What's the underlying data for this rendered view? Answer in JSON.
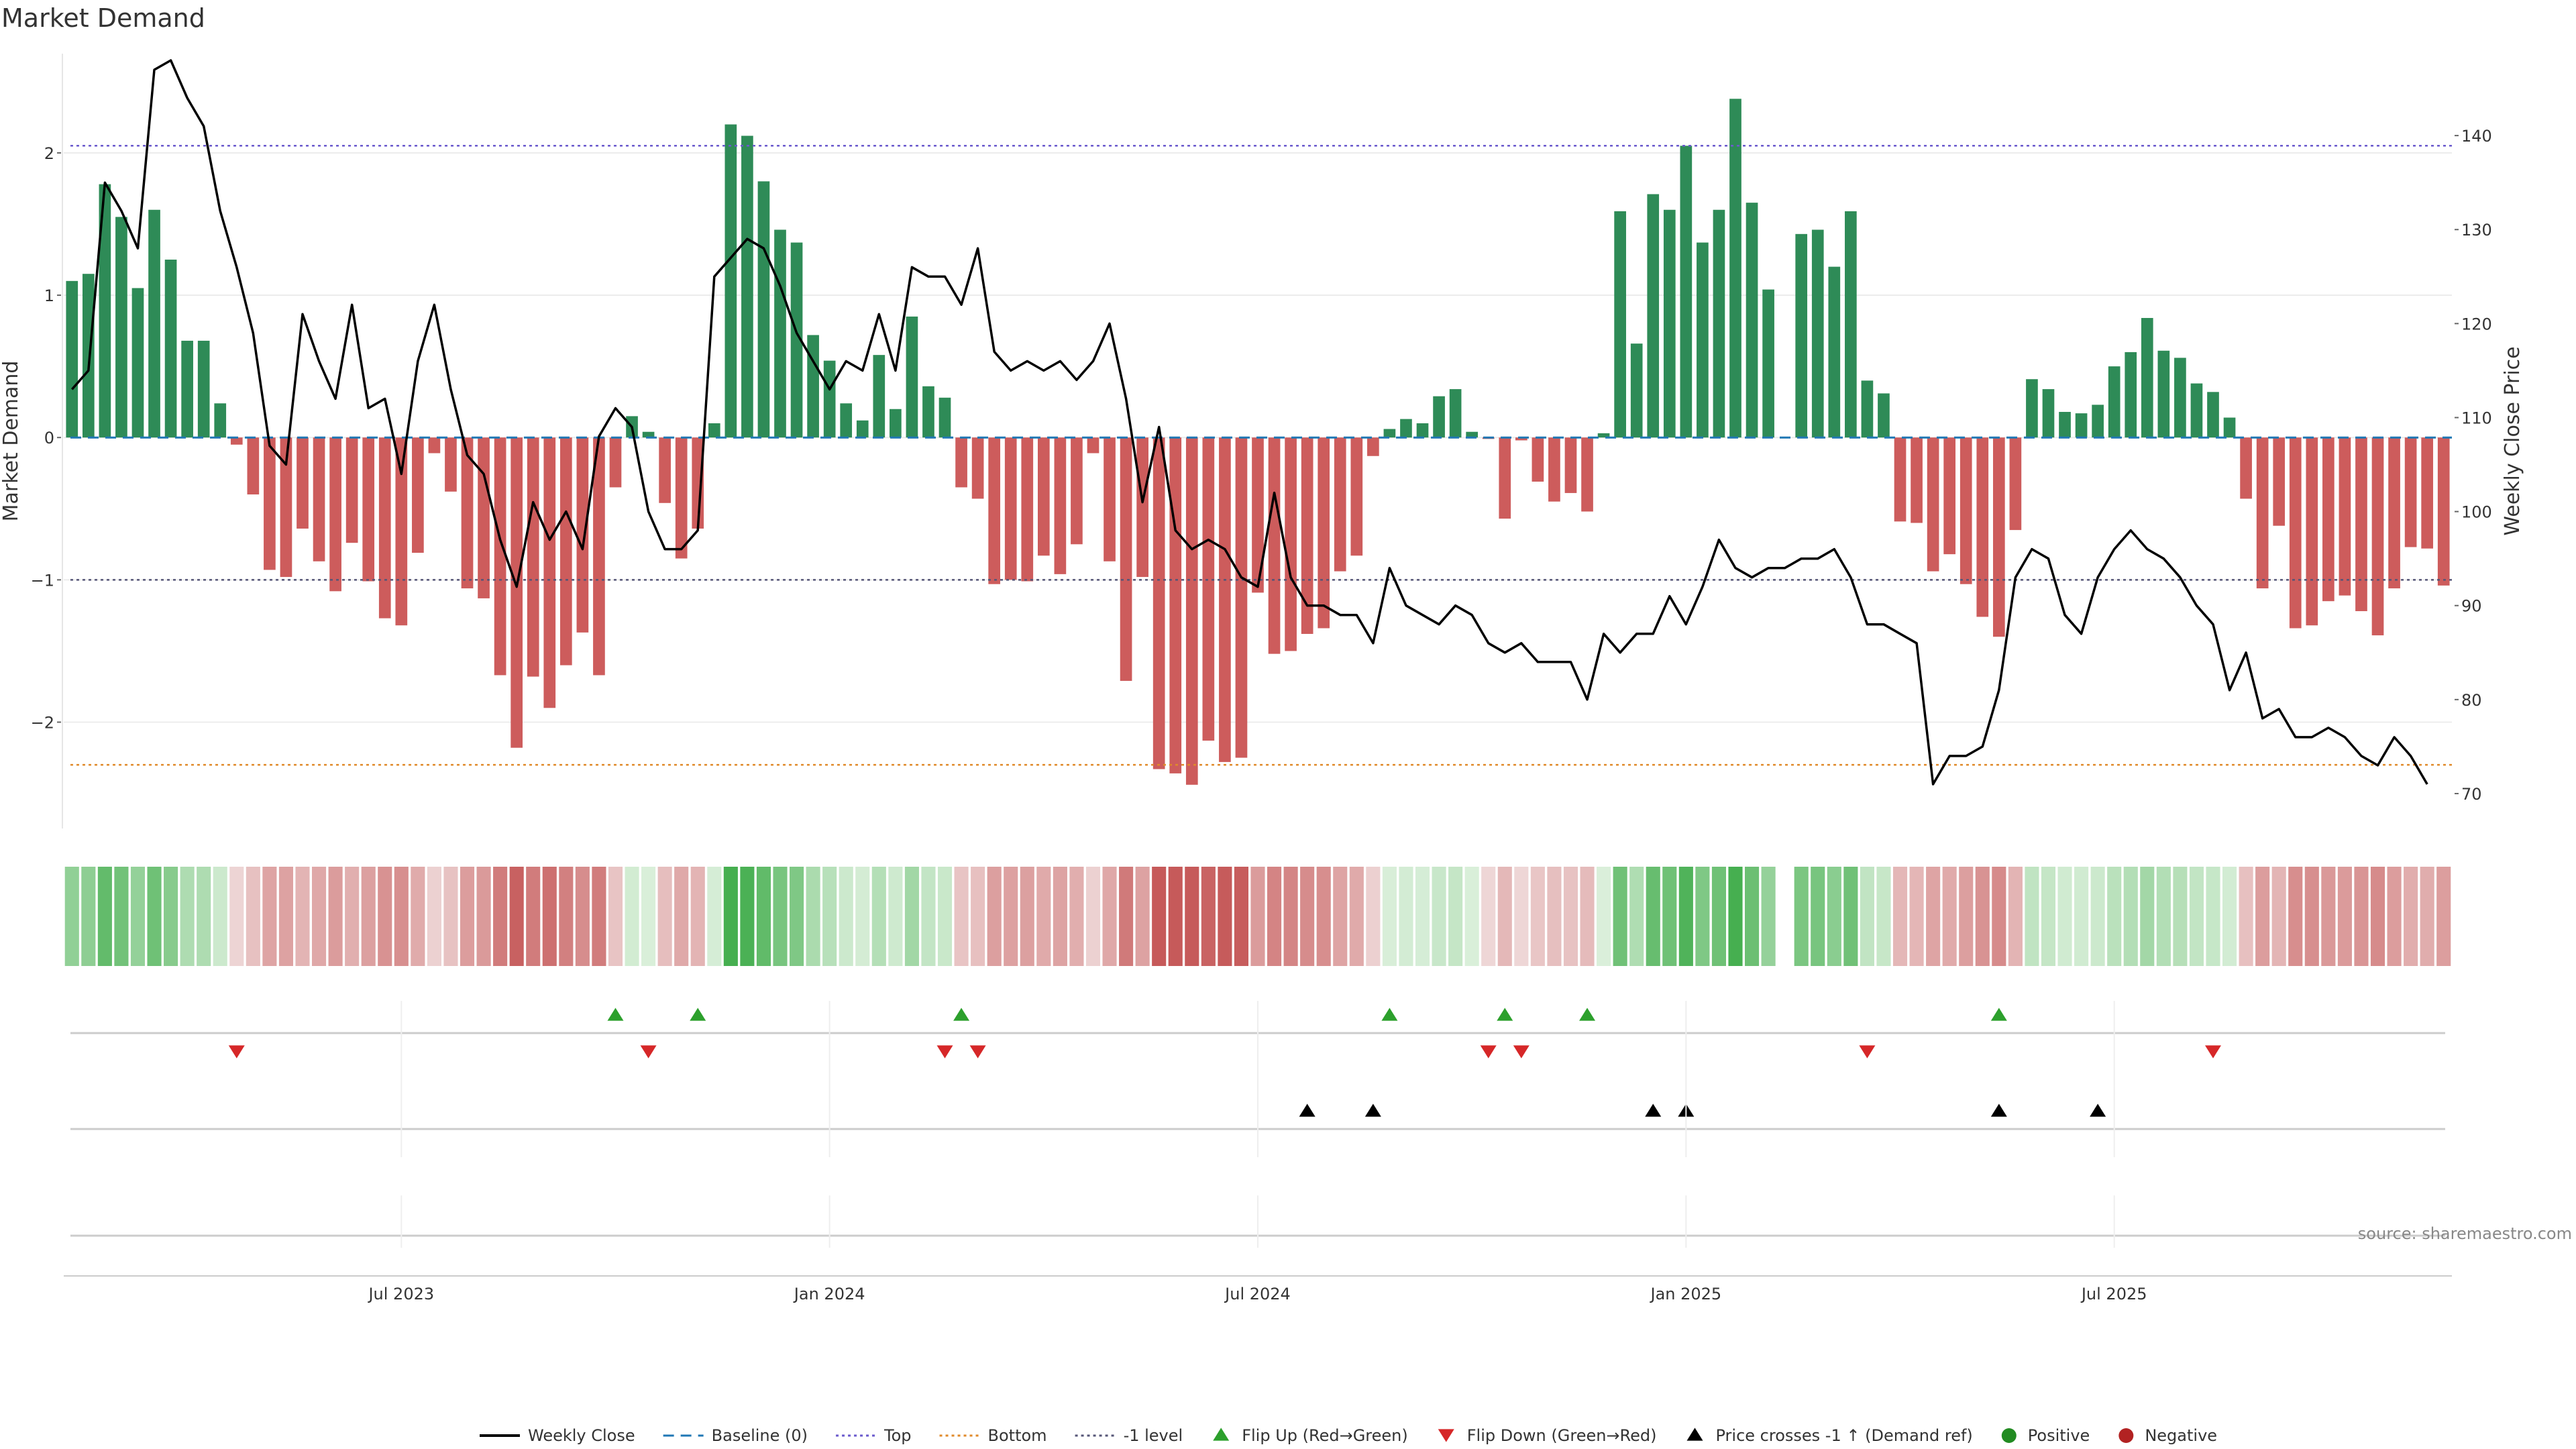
{
  "chart_data": {
    "type": "bar",
    "title": "Market Demand",
    "ylabel": "Market Demand",
    "y2label": "Weekly Close Price",
    "ylim": [
      -2.7,
      2.65
    ],
    "y2lim": [
      67,
      148
    ],
    "yticks": [
      2,
      1,
      0,
      -1,
      -2
    ],
    "ytick_labels": [
      "2",
      "1",
      "0",
      "−1",
      "−2"
    ],
    "y2ticks": [
      140,
      130,
      120,
      110,
      100,
      90,
      80,
      70
    ],
    "reference_levels": {
      "top": 2.05,
      "bottom": -2.3,
      "baseline": 0,
      "minus_one": -1
    },
    "x_tick_weeks": [
      20,
      46,
      72,
      98,
      124
    ],
    "x_tick_labels": [
      "Jul 2023",
      "Jan 2024",
      "Jul 2024",
      "Jan 2025",
      "Jul 2025"
    ],
    "demand": [
      1.1,
      1.15,
      1.78,
      1.55,
      1.05,
      1.6,
      1.25,
      0.68,
      0.68,
      0.24,
      -0.05,
      -0.4,
      -0.93,
      -0.98,
      -0.64,
      -0.87,
      -1.08,
      -0.74,
      -1.01,
      -1.27,
      -1.32,
      -0.81,
      -0.11,
      -0.38,
      -1.06,
      -1.13,
      -1.67,
      -2.18,
      -1.68,
      -1.9,
      -1.6,
      -1.37,
      -1.67,
      -0.35,
      0.15,
      0.04,
      -0.46,
      -0.85,
      -0.64,
      0.1,
      2.2,
      2.12,
      1.8,
      1.46,
      1.37,
      0.72,
      0.54,
      0.24,
      0.12,
      0.58,
      0.2,
      0.85,
      0.36,
      0.28,
      -0.35,
      -0.43,
      -1.03,
      -1.0,
      -1.01,
      -0.83,
      -0.96,
      -0.75,
      -0.11,
      -0.87,
      -1.71,
      -0.98,
      -2.33,
      -2.36,
      -2.44,
      -2.13,
      -2.28,
      -2.25,
      -1.09,
      -1.52,
      -1.5,
      -1.38,
      -1.34,
      -0.94,
      -0.83,
      -0.13,
      0.06,
      0.13,
      0.1,
      0.29,
      0.34,
      0.04,
      -0.01,
      -0.57,
      -0.02,
      -0.31,
      -0.45,
      -0.39,
      -0.52,
      0.03,
      1.59,
      0.66,
      1.71,
      1.6,
      2.05,
      1.37,
      1.6,
      2.38,
      1.65,
      1.04,
      0.0,
      1.43,
      1.46,
      1.2,
      1.59,
      0.4,
      0.31,
      -0.59,
      -0.6,
      -0.94,
      -0.82,
      -1.03,
      -1.26,
      -1.4,
      -0.65,
      0.41,
      0.34,
      0.18,
      0.17,
      0.23,
      0.5,
      0.6,
      0.84,
      0.61,
      0.56,
      0.38,
      0.32,
      0.14,
      -0.43,
      -1.06,
      -0.62,
      -1.34,
      -1.32,
      -1.15,
      -1.11,
      -1.22,
      -1.39,
      -1.06,
      -0.77,
      -0.78,
      -1.04
    ],
    "weekly_close": [
      113,
      115,
      135,
      132,
      128,
      147,
      148,
      144,
      141,
      132,
      126,
      119,
      107,
      105,
      121,
      116,
      112,
      122,
      111,
      112,
      104,
      116,
      122,
      113,
      106,
      104,
      97,
      92,
      101,
      97,
      100,
      96,
      108,
      111,
      109,
      100,
      96,
      96,
      98,
      125,
      127,
      129,
      128,
      124,
      119,
      116,
      113,
      116,
      115,
      121,
      115,
      126,
      125,
      125,
      122,
      128,
      117,
      115,
      116,
      115,
      116,
      114,
      116,
      120,
      112,
      101,
      109,
      98,
      96,
      97,
      96,
      93,
      92,
      102,
      93,
      90,
      90,
      89,
      89,
      86,
      94,
      90,
      89,
      88,
      90,
      89,
      86,
      85,
      86,
      84,
      84,
      84,
      80,
      87,
      85,
      87,
      87,
      91,
      88,
      92,
      97,
      94,
      93,
      94,
      94,
      95,
      95,
      96,
      93,
      88,
      88,
      87,
      86,
      71,
      74,
      74,
      75,
      81,
      93,
      96,
      95,
      89,
      87,
      93,
      96,
      98,
      96,
      95,
      93,
      90,
      88,
      81,
      85,
      78,
      79,
      76,
      76,
      77,
      76,
      74,
      73,
      76,
      74,
      71
    ],
    "heat_strip_values": [
      1.1,
      1.15,
      1.78,
      1.55,
      1.05,
      1.6,
      1.25,
      0.68,
      0.68,
      0.24,
      -0.05,
      -0.4,
      -0.93,
      -0.98,
      -0.64,
      -0.87,
      -1.08,
      -0.74,
      -1.01,
      -1.27,
      -1.32,
      -0.81,
      -0.11,
      -0.38,
      -1.06,
      -1.13,
      -1.67,
      -2.18,
      -1.68,
      -1.9,
      -1.6,
      -1.37,
      -1.67,
      -0.35,
      0.15,
      0.04,
      -0.46,
      -0.85,
      -0.64,
      0.1,
      2.2,
      2.12,
      1.8,
      1.46,
      1.37,
      0.72,
      0.54,
      0.24,
      0.12,
      0.58,
      0.2,
      0.85,
      0.36,
      0.28,
      -0.35,
      -0.43,
      -1.03,
      -1.0,
      -1.01,
      -0.83,
      -0.96,
      -0.75,
      -0.11,
      -0.87,
      -1.71,
      -0.98,
      -2.33,
      -2.36,
      -2.44,
      -2.13,
      -2.28,
      -2.25,
      -1.09,
      -1.52,
      -1.5,
      -1.38,
      -1.34,
      -0.94,
      -0.83,
      -0.13,
      0.06,
      0.13,
      0.1,
      0.29,
      0.34,
      0.04,
      -0.01,
      -0.57,
      -0.02,
      -0.31,
      -0.45,
      -0.39,
      -0.52,
      0.03,
      1.59,
      0.66,
      1.71,
      1.6,
      2.05,
      1.37,
      1.6,
      2.38,
      1.65,
      1.04,
      null,
      1.43,
      1.46,
      1.2,
      1.59,
      0.4,
      0.31,
      -0.59,
      -0.6,
      -0.94,
      -0.82,
      -1.03,
      -1.26,
      -1.4,
      -0.65,
      0.41,
      0.34,
      0.18,
      0.17,
      0.23,
      0.5,
      0.6,
      0.84,
      0.61,
      0.56,
      0.38,
      0.32,
      0.14,
      -0.43,
      -1.06,
      -0.62,
      -1.34,
      -1.32,
      -1.15,
      -1.11,
      -1.22,
      -1.39,
      -1.06,
      -0.77,
      -0.78,
      -1.04
    ],
    "flip_up_weeks": [
      33,
      38,
      54,
      80,
      87,
      92,
      117
    ],
    "flip_down_weeks": [
      10,
      35,
      53,
      55,
      86,
      88,
      109,
      130
    ],
    "price_cross_weeks": [
      75,
      79,
      96,
      98,
      117,
      123
    ],
    "colors": {
      "positive": "#2e8b57",
      "negative": "#cd5c5c",
      "line": "#000000",
      "baseline": "#1f77b4",
      "top": "#6a5acd",
      "bottom": "#e08a2a",
      "minus_one": "#555577",
      "flip_up": "#2ca02c",
      "flip_down": "#d62728",
      "cross": "#000000",
      "legend_positive": "#228b22",
      "legend_negative": "#b22222"
    },
    "legend": [
      {
        "key": "weekly_close",
        "label": "Weekly Close",
        "marker": "line"
      },
      {
        "key": "baseline",
        "label": "Baseline (0)",
        "marker": "dash"
      },
      {
        "key": "top",
        "label": "Top",
        "marker": "dot"
      },
      {
        "key": "bottom",
        "label": "Bottom",
        "marker": "dot"
      },
      {
        "key": "minus_one",
        "label": "-1 level",
        "marker": "dot"
      },
      {
        "key": "flip_up",
        "label": "Flip Up (Red→Green)",
        "marker": "tri-up"
      },
      {
        "key": "flip_down",
        "label": "Flip Down (Green→Red)",
        "marker": "tri-down"
      },
      {
        "key": "cross",
        "label": "Price crosses -1 ↑ (Demand ref)",
        "marker": "tri-up"
      },
      {
        "key": "legend_positive",
        "label": "Positive",
        "marker": "circle"
      },
      {
        "key": "legend_negative",
        "label": "Negative",
        "marker": "circle"
      }
    ],
    "source": "source: sharemaestro.com"
  }
}
